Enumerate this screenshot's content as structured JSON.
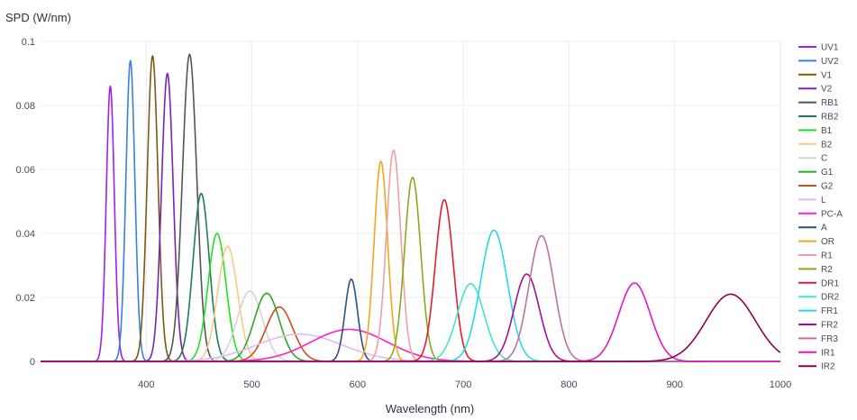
{
  "chart_data": {
    "type": "line",
    "title": "",
    "xlabel": "Wavelength (nm)",
    "ylabel": "SPD (W/nm)",
    "xlim": [
      300,
      1000
    ],
    "ylim": [
      0,
      0.1
    ],
    "x_ticks": [
      400,
      500,
      600,
      700,
      800,
      900,
      1000
    ],
    "x_tick_labels": [
      "400",
      "500",
      "600",
      "700",
      "800",
      "900",
      "1000"
    ],
    "y_ticks": [
      0,
      0.02,
      0.04,
      0.06,
      0.08,
      0.1
    ],
    "y_tick_labels": [
      "0",
      "0.02",
      "0.04",
      "0.06",
      "0.08",
      "0.1"
    ],
    "grid": true,
    "legend_position": "right",
    "series": [
      {
        "name": "UV1",
        "color": "#a020f0",
        "peak_nm": 366,
        "peak_value": 0.086,
        "fwhm_nm": 9
      },
      {
        "name": "UV2",
        "color": "#3a7fe0",
        "peak_nm": 385,
        "peak_value": 0.094,
        "fwhm_nm": 10
      },
      {
        "name": "V1",
        "color": "#7a5a10",
        "peak_nm": 406,
        "peak_value": 0.0955,
        "fwhm_nm": 12
      },
      {
        "name": "V2",
        "color": "#7a22b8",
        "peak_nm": 420,
        "peak_value": 0.09,
        "fwhm_nm": 13
      },
      {
        "name": "RB1",
        "color": "#555555",
        "peak_nm": 441,
        "peak_value": 0.096,
        "fwhm_nm": 16
      },
      {
        "name": "RB2",
        "color": "#1f7a5c",
        "peak_nm": 452,
        "peak_value": 0.0525,
        "fwhm_nm": 18
      },
      {
        "name": "B1",
        "color": "#22e022",
        "peak_nm": 467,
        "peak_value": 0.04,
        "fwhm_nm": 20
      },
      {
        "name": "B2",
        "color": "#f5c98a",
        "peak_nm": 477,
        "peak_value": 0.036,
        "fwhm_nm": 22
      },
      {
        "name": "C",
        "color": "#d6d2d8",
        "peak_nm": 498,
        "peak_value": 0.022,
        "fwhm_nm": 28
      },
      {
        "name": "G1",
        "color": "#2ca82c",
        "peak_nm": 514,
        "peak_value": 0.0213,
        "fwhm_nm": 28
      },
      {
        "name": "G2",
        "color": "#d44a1a",
        "peak_nm": 526,
        "peak_value": 0.017,
        "fwhm_nm": 30
      },
      {
        "name": "L",
        "color": "#e6b8f0",
        "peak_nm": 545,
        "peak_value": 0.0085,
        "fwhm_nm": 95
      },
      {
        "name": "PC-A",
        "color": "#ff20d0",
        "peak_nm": 592,
        "peak_value": 0.01,
        "fwhm_nm": 85
      },
      {
        "name": "A",
        "color": "#2c4f85",
        "peak_nm": 594,
        "peak_value": 0.0257,
        "fwhm_nm": 14
      },
      {
        "name": "OR",
        "color": "#f0a818",
        "peak_nm": 622,
        "peak_value": 0.0625,
        "fwhm_nm": 15
      },
      {
        "name": "R1",
        "color": "#f0a0a0",
        "peak_nm": 634,
        "peak_value": 0.066,
        "fwhm_nm": 16
      },
      {
        "name": "R2",
        "color": "#8aa81e",
        "peak_nm": 652,
        "peak_value": 0.0575,
        "fwhm_nm": 18
      },
      {
        "name": "DR1",
        "color": "#e01e2c",
        "peak_nm": 682,
        "peak_value": 0.0505,
        "fwhm_nm": 20
      },
      {
        "name": "DR2",
        "color": "#40e8c0",
        "peak_nm": 707,
        "peak_value": 0.0243,
        "fwhm_nm": 30
      },
      {
        "name": "FR1",
        "color": "#28d8e8",
        "peak_nm": 729,
        "peak_value": 0.041,
        "fwhm_nm": 30
      },
      {
        "name": "FR2",
        "color": "#a0109a",
        "peak_nm": 760,
        "peak_value": 0.0273,
        "fwhm_nm": 28
      },
      {
        "name": "FR3",
        "color": "#c070a0",
        "peak_nm": 774,
        "peak_value": 0.0393,
        "fwhm_nm": 28
      },
      {
        "name": "IR1",
        "color": "#e818b8",
        "peak_nm": 862,
        "peak_value": 0.0245,
        "fwhm_nm": 35
      },
      {
        "name": "IR2",
        "color": "#900050",
        "peak_nm": 953,
        "peak_value": 0.021,
        "fwhm_nm": 55
      }
    ]
  }
}
